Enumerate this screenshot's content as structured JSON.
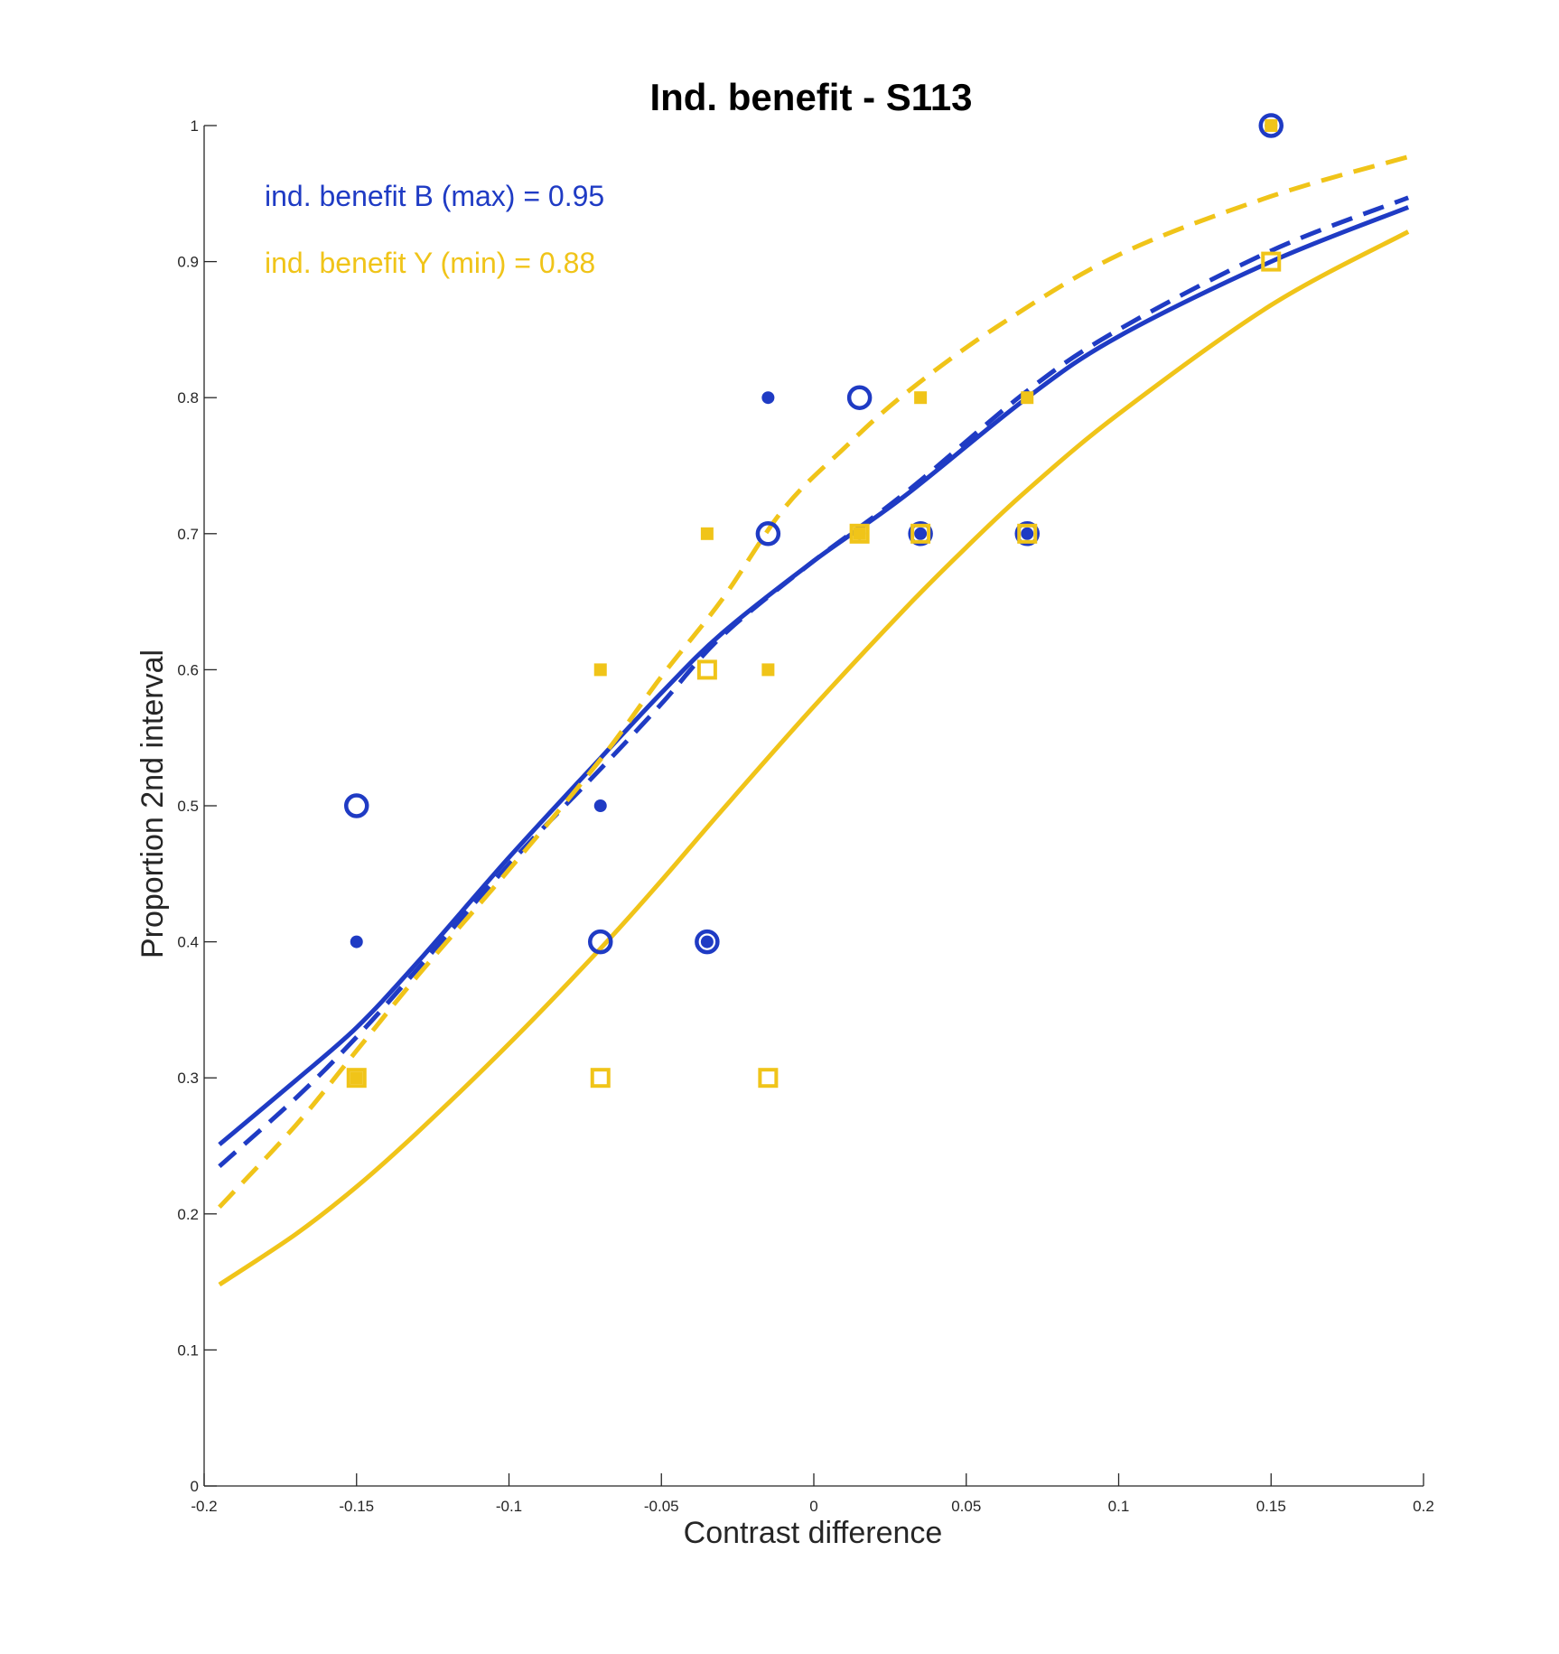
{
  "chart_data": {
    "type": "scatter",
    "title": "Ind. benefit - S113",
    "xlabel": "Contrast difference",
    "ylabel": "Proportion 2nd interval",
    "xlim": [
      -0.2,
      0.2
    ],
    "ylim": [
      0,
      1
    ],
    "xticks": [
      -0.2,
      -0.15,
      -0.1,
      -0.05,
      0,
      0.05,
      0.1,
      0.15,
      0.2
    ],
    "xtick_labels": [
      "-0.2",
      "-0.15",
      "-0.1",
      "-0.05",
      "0",
      "0.05",
      "0.1",
      "0.15",
      "0.2"
    ],
    "yticks": [
      0,
      0.1,
      0.2,
      0.3,
      0.4,
      0.5,
      0.6,
      0.7,
      0.8,
      0.9,
      1
    ],
    "ytick_labels": [
      "0",
      "0.1",
      "0.2",
      "0.3",
      "0.4",
      "0.5",
      "0.6",
      "0.7",
      "0.8",
      "0.9",
      "1"
    ],
    "grid": false,
    "annotations": [
      {
        "text": "ind. benefit B (max) = 0.95",
        "color": "#1f3bc4"
      },
      {
        "text": "ind. benefit Y (min) = 0.88",
        "color": "#f0c419"
      }
    ],
    "colors": {
      "blue": "#1f3bc4",
      "yellow": "#f0c419",
      "axis": "#262626"
    },
    "series": [
      {
        "color": "#1f3bc4",
        "marker": "circle-open",
        "points": [
          [
            -0.15,
            0.5
          ],
          [
            -0.07,
            0.4
          ],
          [
            -0.035,
            0.4
          ],
          [
            -0.015,
            0.7
          ],
          [
            0.015,
            0.8
          ],
          [
            0.035,
            0.7
          ],
          [
            0.07,
            0.7
          ],
          [
            0.15,
            1.0
          ]
        ]
      },
      {
        "color": "#1f3bc4",
        "marker": "circle-filled",
        "points": [
          [
            -0.15,
            0.4
          ],
          [
            -0.07,
            0.5
          ],
          [
            -0.035,
            0.4
          ],
          [
            -0.015,
            0.8
          ],
          [
            0.015,
            0.7
          ],
          [
            0.035,
            0.7
          ],
          [
            0.07,
            0.7
          ],
          [
            0.15,
            1.0
          ]
        ]
      },
      {
        "color": "#f0c419",
        "marker": "square-open",
        "points": [
          [
            -0.15,
            0.3
          ],
          [
            -0.07,
            0.3
          ],
          [
            -0.035,
            0.6
          ],
          [
            -0.015,
            0.3
          ],
          [
            0.015,
            0.7
          ],
          [
            0.035,
            0.7
          ],
          [
            0.07,
            0.7
          ],
          [
            0.15,
            0.9
          ]
        ]
      },
      {
        "color": "#f0c419",
        "marker": "square-filled",
        "points": [
          [
            -0.15,
            0.3
          ],
          [
            -0.07,
            0.6
          ],
          [
            -0.035,
            0.7
          ],
          [
            -0.015,
            0.6
          ],
          [
            0.015,
            0.7
          ],
          [
            0.035,
            0.8
          ],
          [
            0.07,
            0.8
          ],
          [
            0.15,
            1.0
          ]
        ]
      }
    ],
    "curves": [
      {
        "color": "#1f3bc4",
        "style": "dashed",
        "points": [
          [
            -0.195,
            0.235
          ],
          [
            -0.17,
            0.285
          ],
          [
            -0.15,
            0.33
          ],
          [
            -0.13,
            0.38
          ],
          [
            -0.1,
            0.457
          ],
          [
            -0.07,
            0.527
          ],
          [
            -0.05,
            0.575
          ],
          [
            -0.03,
            0.625
          ],
          [
            0,
            0.68
          ],
          [
            0.03,
            0.73
          ],
          [
            0.07,
            0.805
          ],
          [
            0.1,
            0.85
          ],
          [
            0.15,
            0.908
          ],
          [
            0.195,
            0.947
          ]
        ]
      },
      {
        "color": "#1f3bc4",
        "style": "solid",
        "points": [
          [
            -0.195,
            0.251
          ],
          [
            -0.17,
            0.298
          ],
          [
            -0.15,
            0.337
          ],
          [
            -0.13,
            0.385
          ],
          [
            -0.1,
            0.462
          ],
          [
            -0.07,
            0.535
          ],
          [
            -0.05,
            0.583
          ],
          [
            -0.03,
            0.627
          ],
          [
            0,
            0.68
          ],
          [
            0.03,
            0.728
          ],
          [
            0.07,
            0.8
          ],
          [
            0.1,
            0.845
          ],
          [
            0.15,
            0.9
          ],
          [
            0.195,
            0.94
          ]
        ]
      },
      {
        "color": "#f0c419",
        "style": "dashed",
        "points": [
          [
            -0.195,
            0.205
          ],
          [
            -0.17,
            0.265
          ],
          [
            -0.15,
            0.32
          ],
          [
            -0.13,
            0.375
          ],
          [
            -0.1,
            0.453
          ],
          [
            -0.07,
            0.534
          ],
          [
            -0.05,
            0.595
          ],
          [
            -0.03,
            0.652
          ],
          [
            -0.01,
            0.718
          ],
          [
            0.01,
            0.763
          ],
          [
            0.03,
            0.803
          ],
          [
            0.06,
            0.852
          ],
          [
            0.1,
            0.905
          ],
          [
            0.15,
            0.948
          ],
          [
            0.195,
            0.977
          ]
        ]
      },
      {
        "color": "#f0c419",
        "style": "solid",
        "points": [
          [
            -0.195,
            0.148
          ],
          [
            -0.17,
            0.185
          ],
          [
            -0.15,
            0.22
          ],
          [
            -0.13,
            0.26
          ],
          [
            -0.1,
            0.325
          ],
          [
            -0.07,
            0.395
          ],
          [
            -0.05,
            0.445
          ],
          [
            -0.03,
            0.497
          ],
          [
            0,
            0.573
          ],
          [
            0.03,
            0.645
          ],
          [
            0.05,
            0.69
          ],
          [
            0.07,
            0.732
          ],
          [
            0.1,
            0.788
          ],
          [
            0.15,
            0.868
          ],
          [
            0.195,
            0.922
          ]
        ]
      }
    ]
  }
}
